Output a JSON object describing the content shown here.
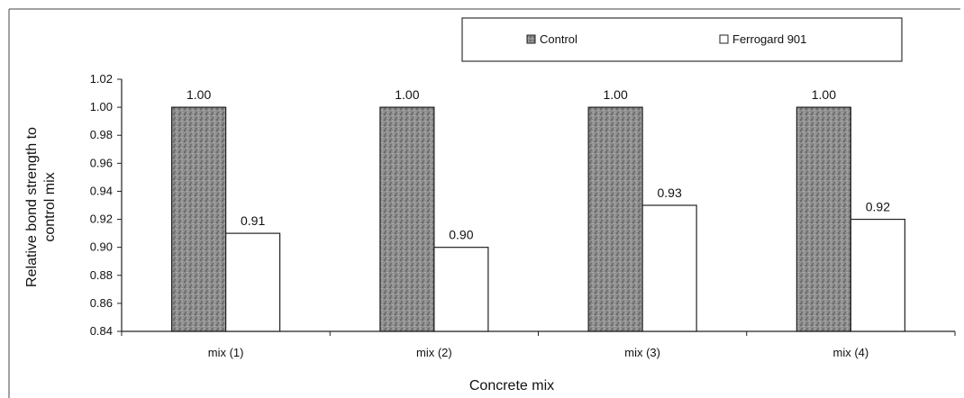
{
  "chart_data": {
    "type": "bar",
    "categories": [
      "mix (1)",
      "mix (2)",
      "mix (3)",
      "mix (4)"
    ],
    "series": [
      {
        "name": "Control",
        "values": [
          1.0,
          1.0,
          1.0,
          1.0
        ],
        "labels": [
          "1.00",
          "1.00",
          "1.00",
          "1.00"
        ],
        "fill": "#8a8a8a"
      },
      {
        "name": "Ferrogard 901",
        "values": [
          0.91,
          0.9,
          0.93,
          0.92
        ],
        "labels": [
          "0.91",
          "0.90",
          "0.93",
          "0.92"
        ],
        "fill": "#ffffff"
      }
    ],
    "xlabel": "Concrete mix",
    "ylabel": "Relative bond strength to control mix",
    "ylabel_lines": [
      "Relative bond strength to",
      "control mix"
    ],
    "ylim": [
      0.84,
      1.02
    ],
    "yticks": [
      "0.84",
      "0.86",
      "0.88",
      "0.90",
      "0.92",
      "0.94",
      "0.96",
      "0.98",
      "1.00",
      "1.02"
    ],
    "legend": {
      "position": "top-right",
      "entries": [
        "Control",
        "Ferrogard 901"
      ]
    },
    "grid": false
  }
}
